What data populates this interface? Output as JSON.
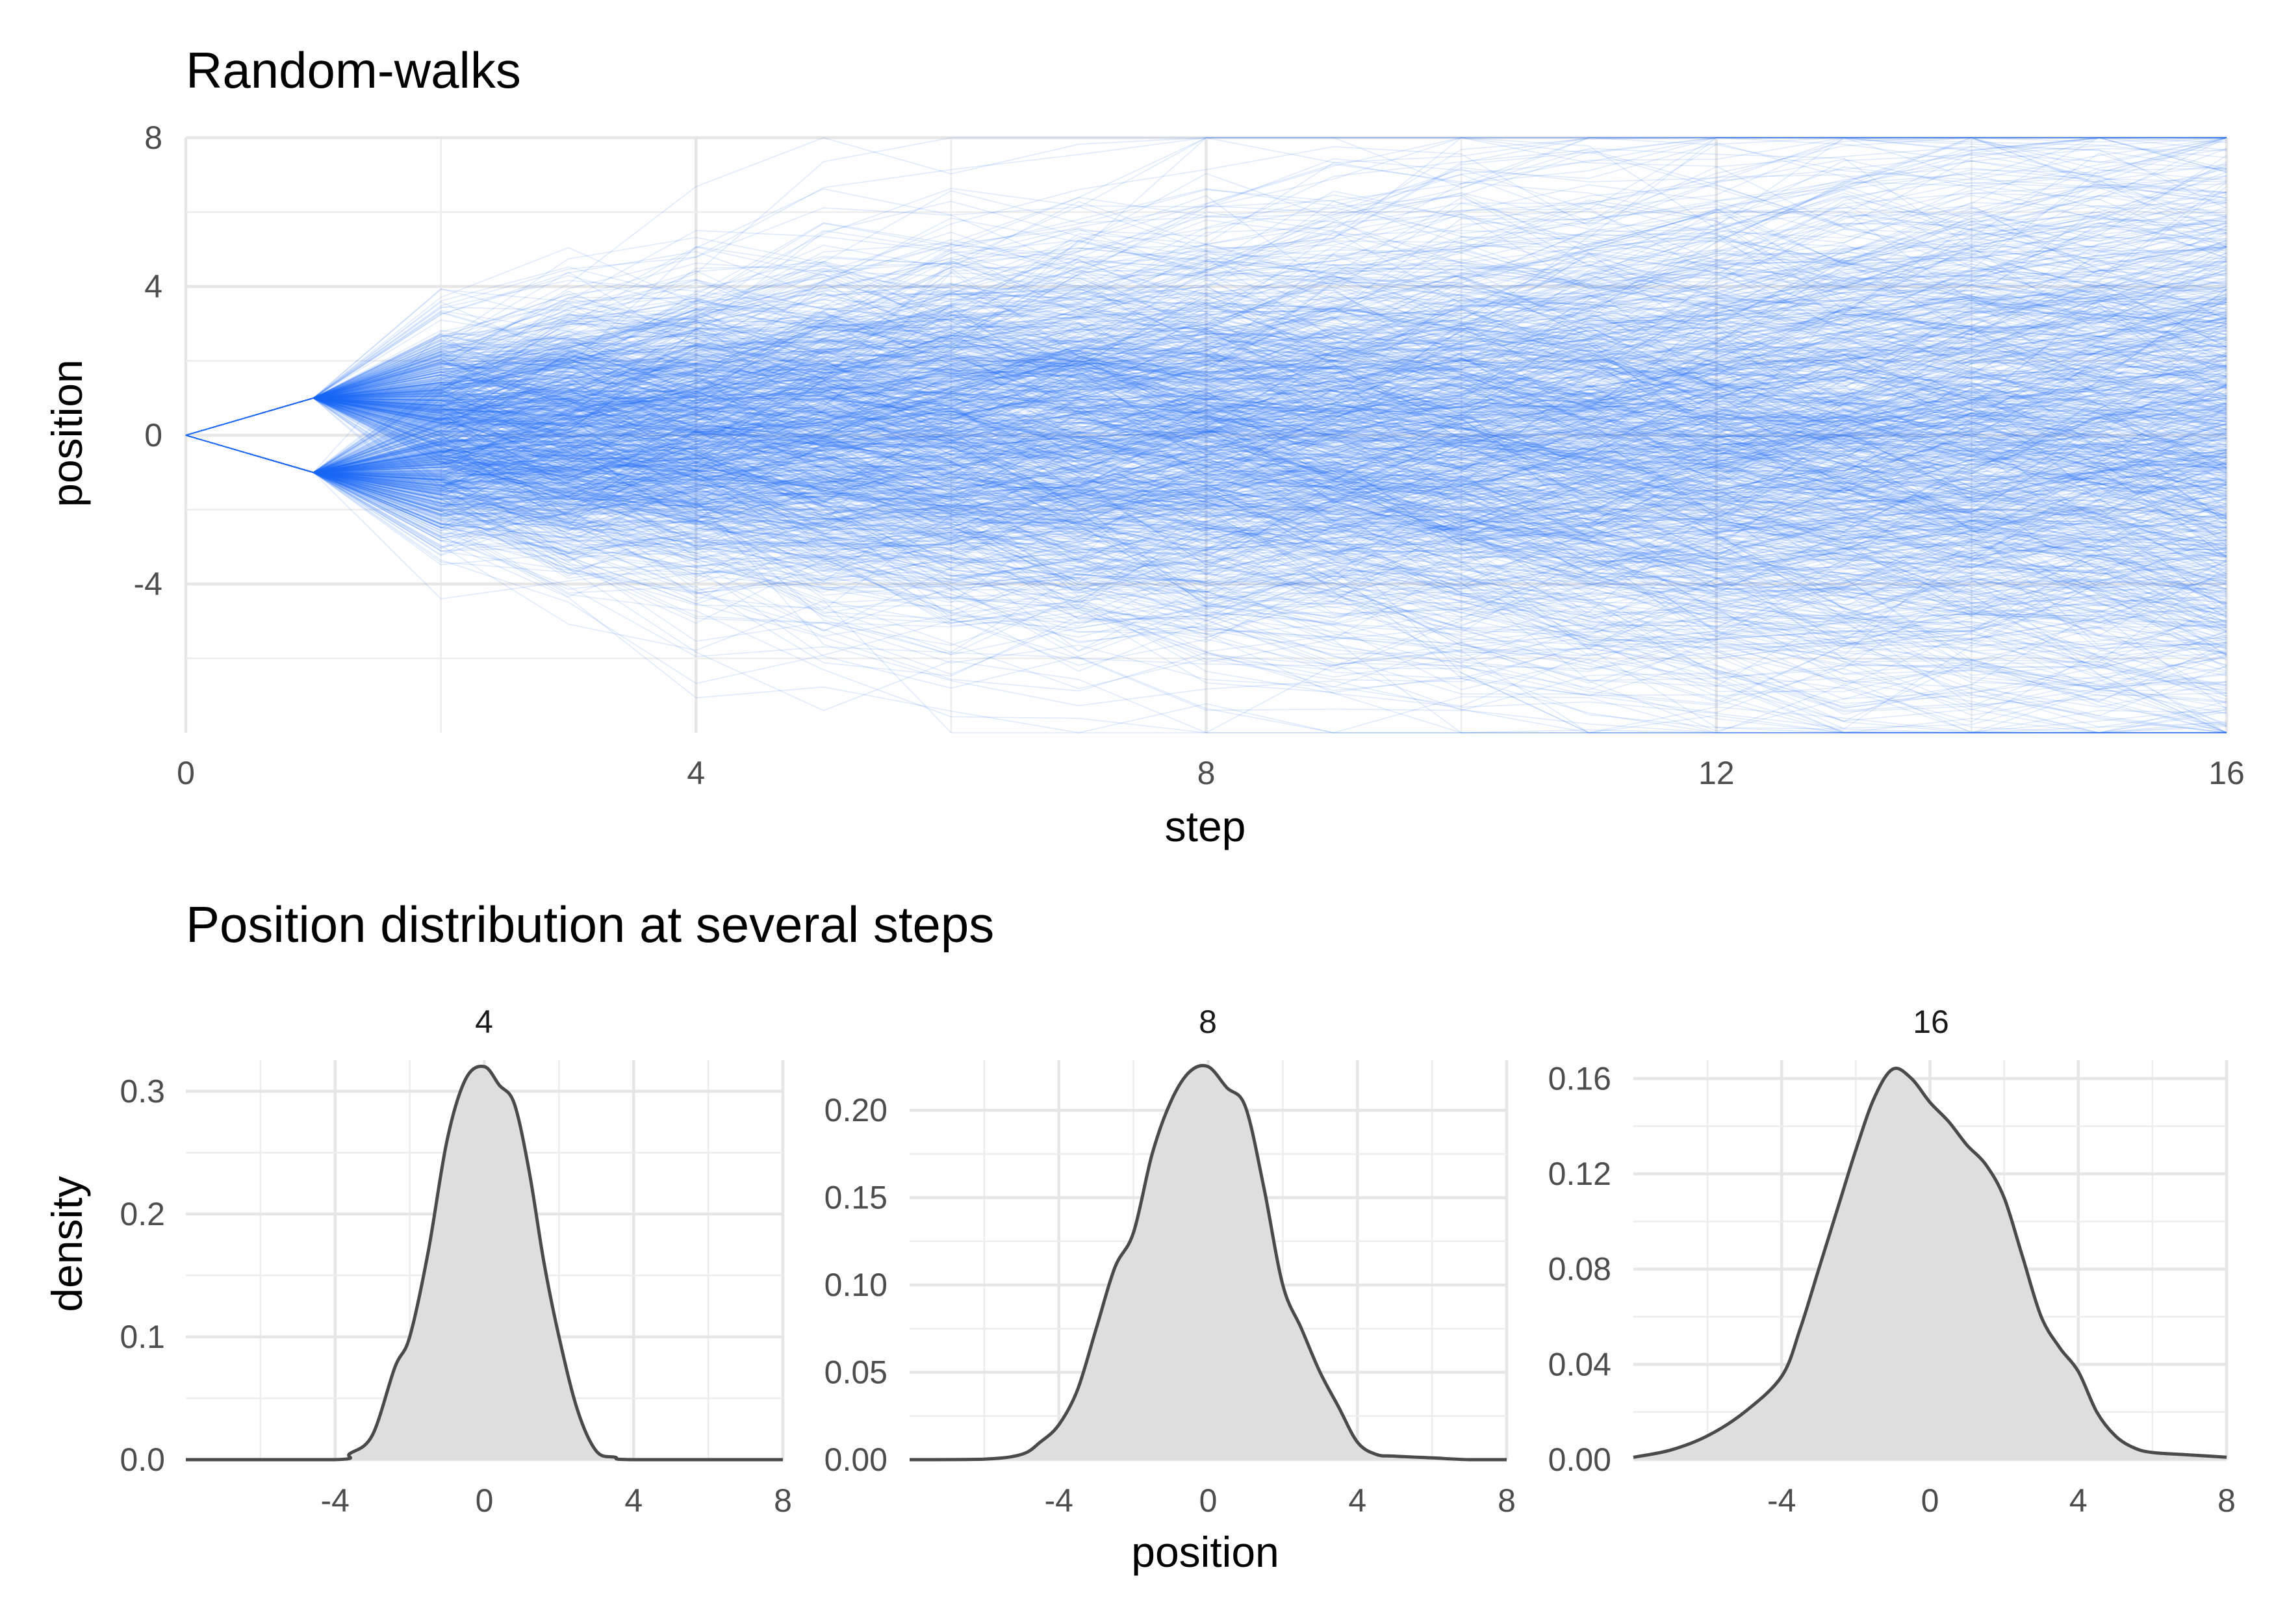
{
  "chart_data": [
    {
      "type": "line",
      "title": "Random-walks",
      "xlabel": "step",
      "ylabel": "position",
      "xlim": [
        0,
        16
      ],
      "ylim": [
        -8,
        8
      ],
      "x_ticks": [
        0,
        4,
        8,
        12,
        16
      ],
      "y_ticks": [
        -4,
        0,
        4,
        8
      ],
      "x_tick_labels": [
        "0",
        "4",
        "8",
        "12",
        "16"
      ],
      "y_tick_labels": [
        "-4",
        "0",
        "4",
        "8"
      ],
      "n_walks": 1000,
      "step_distribution": "normal(0, 1) per step, first step ±1",
      "grid": true,
      "color": "#1a6cf5"
    },
    {
      "type": "area",
      "title": "Position distribution at several steps",
      "xlabel": "position",
      "ylabel": "density",
      "fill_color": "#dedede",
      "line_color": "#4a4a4a",
      "grid": true,
      "panels": [
        {
          "label": "4",
          "xlim": [
            -8,
            8
          ],
          "ylim": [
            0,
            0.32
          ],
          "x_tick_labels": [
            "-4",
            "0",
            "4",
            "8"
          ],
          "y_tick_labels": [
            "0.0",
            "0.1",
            "0.2",
            "0.3"
          ],
          "x": [
            -8,
            -4,
            -3.6,
            -3,
            -2.4,
            -2,
            -1.5,
            -1,
            -0.5,
            0,
            0.4,
            0.8,
            1.2,
            1.6,
            2,
            2.5,
            3,
            3.5,
            4,
            8
          ],
          "values": [
            0,
            0,
            0.005,
            0.02,
            0.075,
            0.1,
            0.17,
            0.26,
            0.31,
            0.32,
            0.305,
            0.29,
            0.235,
            0.16,
            0.1,
            0.04,
            0.007,
            0.002,
            0,
            0
          ]
        },
        {
          "label": "8",
          "xlim": [
            -8,
            8
          ],
          "ylim": [
            0,
            0.225
          ],
          "x_tick_labels": [
            "-4",
            "0",
            "4",
            "8"
          ],
          "y_tick_labels": [
            "0.00",
            "0.05",
            "0.10",
            "0.15",
            "0.20"
          ],
          "x": [
            -8,
            -6,
            -5,
            -4.5,
            -4,
            -3.5,
            -3,
            -2.5,
            -2,
            -1.5,
            -1,
            -0.5,
            0,
            0.5,
            1,
            1.5,
            2,
            2.5,
            3,
            3.5,
            4,
            4.5,
            5,
            6,
            7,
            8
          ],
          "values": [
            0,
            0.0003,
            0.003,
            0.01,
            0.02,
            0.04,
            0.075,
            0.11,
            0.13,
            0.175,
            0.205,
            0.222,
            0.225,
            0.213,
            0.202,
            0.155,
            0.1,
            0.075,
            0.05,
            0.03,
            0.01,
            0.003,
            0.002,
            0.001,
            0,
            0
          ]
        },
        {
          "label": "16",
          "xlim": [
            -8,
            8
          ],
          "ylim": [
            0,
            0.165
          ],
          "x_tick_labels": [
            "-4",
            "0",
            "4",
            "8"
          ],
          "y_tick_labels": [
            "0.00",
            "0.04",
            "0.08",
            "0.12",
            "0.16"
          ],
          "x": [
            -8,
            -7,
            -6,
            -5,
            -4,
            -3.5,
            -3,
            -2.5,
            -2,
            -1.5,
            -1,
            -0.5,
            0,
            0.5,
            1,
            1.5,
            2,
            2.5,
            3,
            3.5,
            4,
            4.5,
            5,
            5.5,
            6,
            7,
            8
          ],
          "values": [
            0.001,
            0.004,
            0.01,
            0.02,
            0.035,
            0.055,
            0.08,
            0.105,
            0.13,
            0.152,
            0.164,
            0.16,
            0.15,
            0.142,
            0.132,
            0.124,
            0.11,
            0.085,
            0.06,
            0.047,
            0.037,
            0.02,
            0.01,
            0.005,
            0.003,
            0.002,
            0.001
          ]
        }
      ]
    }
  ]
}
